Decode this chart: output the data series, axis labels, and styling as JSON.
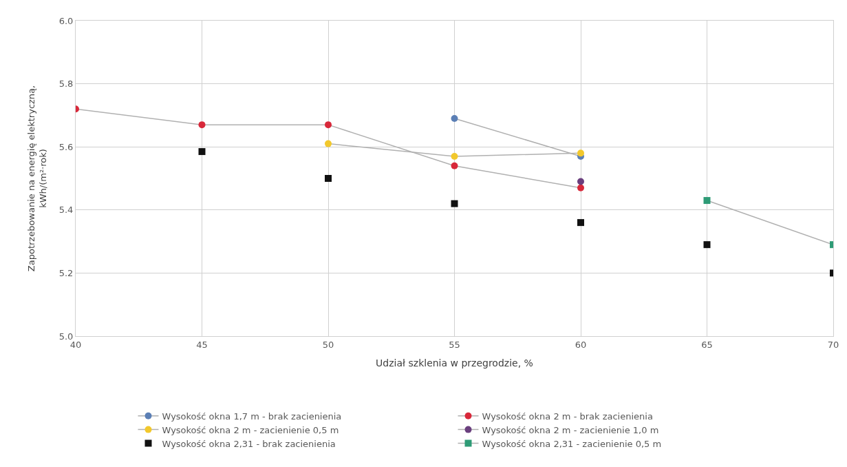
{
  "chart_data": {
    "type": "line",
    "xlabel": "Udział szklenia w przegrodzie, %",
    "ylabel": "Zapotrzebowanie na energię elektryczną,\nkWh/(m²·rok)",
    "xlim": [
      40,
      70
    ],
    "xticks": [
      40,
      45,
      50,
      55,
      60,
      65,
      70
    ],
    "ylim": [
      5.0,
      6.0
    ],
    "yticks": [
      {
        "value": 5.0,
        "label": "5.0"
      },
      {
        "value": 5.2,
        "label": "5.2"
      },
      {
        "value": 5.4,
        "label": "5.4"
      },
      {
        "value": 5.6,
        "label": "5.6"
      },
      {
        "value": 5.8,
        "label": "5.8"
      },
      {
        "value": 6.0,
        "label": "6.0"
      }
    ],
    "grid": true,
    "legend": "bottom",
    "marker": "circle",
    "series": [
      {
        "name": "Wysokość okna 1,7 m - brak zacienienia",
        "color": "#5b7fb5",
        "x": [
          55,
          60
        ],
        "values": [
          5.69,
          5.57
        ]
      },
      {
        "name": "Wysokość okna 2 m - brak zacienienia",
        "color": "#d8283a",
        "x": [
          40,
          45,
          50,
          55,
          60
        ],
        "values": [
          5.72,
          5.67,
          5.67,
          5.54,
          5.47
        ]
      },
      {
        "name": "Wysokość okna 2 m - zacienienie 0,5 m",
        "color": "#f2c82c",
        "x": [
          50,
          55,
          60
        ],
        "values": [
          5.61,
          5.57,
          5.58
        ]
      },
      {
        "name": "Wysokość okna 2 m - zacienienie 1,0 m",
        "color": "#6a3f7e",
        "x": [
          60
        ],
        "values": [
          5.49
        ]
      },
      {
        "name": "Wysokość okna 2,31 - brak zacienienia",
        "color": "#111111",
        "type": "scatter",
        "marker": "square",
        "x": [
          45,
          50,
          55,
          60,
          65,
          70
        ],
        "values": [
          5.585,
          5.5,
          5.42,
          5.36,
          5.29,
          5.2
        ]
      },
      {
        "name": "Wysokość okna 2,31 - zacienienie 0,5 m",
        "color": "#2e9b76",
        "marker": "square",
        "x": [
          65,
          70
        ],
        "values": [
          5.43,
          5.29
        ]
      }
    ]
  }
}
